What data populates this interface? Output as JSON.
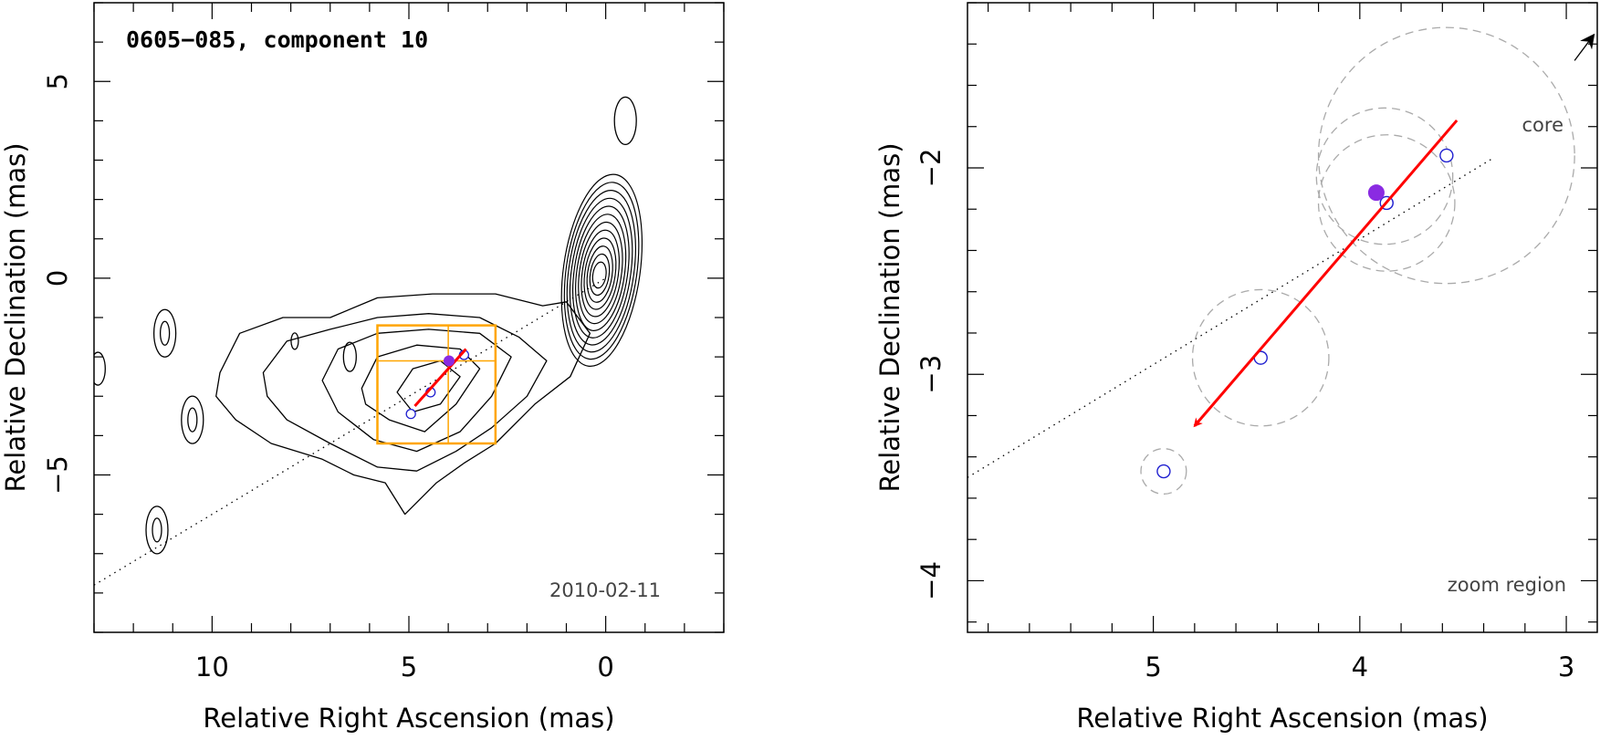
{
  "chart_data": [
    {
      "type": "contour",
      "title": "0605−085, component 10",
      "date": "2010-02-11",
      "xlabel": "Relative Right Ascension (mas)",
      "ylabel": "Relative Declination (mas)",
      "xlim": [
        13,
        -3
      ],
      "ylim": [
        -9,
        7
      ],
      "xticks": [
        10,
        5,
        0
      ],
      "xtick_labels": [
        "10",
        "5",
        "0"
      ],
      "yticks": [
        5,
        0,
        -5
      ],
      "ytick_labels": [
        "5",
        "0",
        "−5"
      ],
      "jet_axis": [
        [
          13,
          -7.8
        ],
        [
          0,
          0
        ]
      ],
      "zoom_box": {
        "ra": [
          5.8,
          2.8
        ],
        "dec": [
          -4.2,
          -1.2
        ],
        "cross_ra": 4.0,
        "cross_dec": -2.1
      },
      "components": [
        {
          "ra": 3.6,
          "dec": -1.95,
          "r": 0.12
        },
        {
          "ra": 4.45,
          "dec": -2.9,
          "r": 0.12
        },
        {
          "ra": 4.95,
          "dec": -3.45,
          "r": 0.12
        }
      ],
      "filled_component": {
        "ra": 3.98,
        "dec": -2.1
      },
      "velocity_arrow": {
        "from": [
          3.55,
          -1.8
        ],
        "to": [
          4.85,
          -3.25
        ]
      },
      "contours": {
        "core": {
          "ra": 0.1,
          "dec": 0.2,
          "levels": 12
        },
        "blobs": [
          {
            "ra": 11.2,
            "dec": -1.4
          },
          {
            "ra": 10.5,
            "dec": -3.6
          },
          {
            "ra": 11.4,
            "dec": -6.4
          },
          {
            "ra": -0.5,
            "dec": 4.0
          }
        ]
      }
    },
    {
      "type": "scatter",
      "label": "zoom region",
      "xlabel": "Relative Right Ascension (mas)",
      "ylabel": "Relative Declination (mas)",
      "xlim": [
        5.9,
        2.85
      ],
      "ylim": [
        -4.25,
        -1.2
      ],
      "xticks": [
        5,
        4,
        3
      ],
      "xtick_labels": [
        "5",
        "4",
        "3"
      ],
      "yticks": [
        -2,
        -3,
        -4
      ],
      "ytick_labels": [
        "−2",
        "−3",
        "−4"
      ],
      "core_label": "core",
      "jet_axis": [
        [
          5.9,
          -3.5
        ],
        [
          3.35,
          -1.95
        ]
      ],
      "core_arrow": {
        "from": [
          2.96,
          -1.48
        ],
        "to": [
          2.87,
          -1.36
        ]
      },
      "components": [
        {
          "ra": 3.58,
          "dec": -1.94,
          "err": 0.62
        },
        {
          "ra": 3.87,
          "dec": -2.17,
          "err": 0.33
        },
        {
          "ra": 4.48,
          "dec": -2.92,
          "err": 0.33
        },
        {
          "ra": 4.95,
          "dec": -3.47,
          "err": 0.11
        }
      ],
      "extra_error_circles": [
        {
          "ra": 3.88,
          "dec": -2.04,
          "err": 0.33
        }
      ],
      "filled_component": {
        "ra": 3.92,
        "dec": -2.12
      },
      "velocity_arrow": {
        "from": [
          3.53,
          -1.77
        ],
        "to": [
          4.8,
          -3.25
        ]
      }
    }
  ],
  "colors": {
    "contour": "#000000",
    "component": "#2020d0",
    "filled": "#8a2be2",
    "arrow": "#ff0000",
    "zoom_box": "#ffa500",
    "error_circle": "#aaaaaa"
  }
}
